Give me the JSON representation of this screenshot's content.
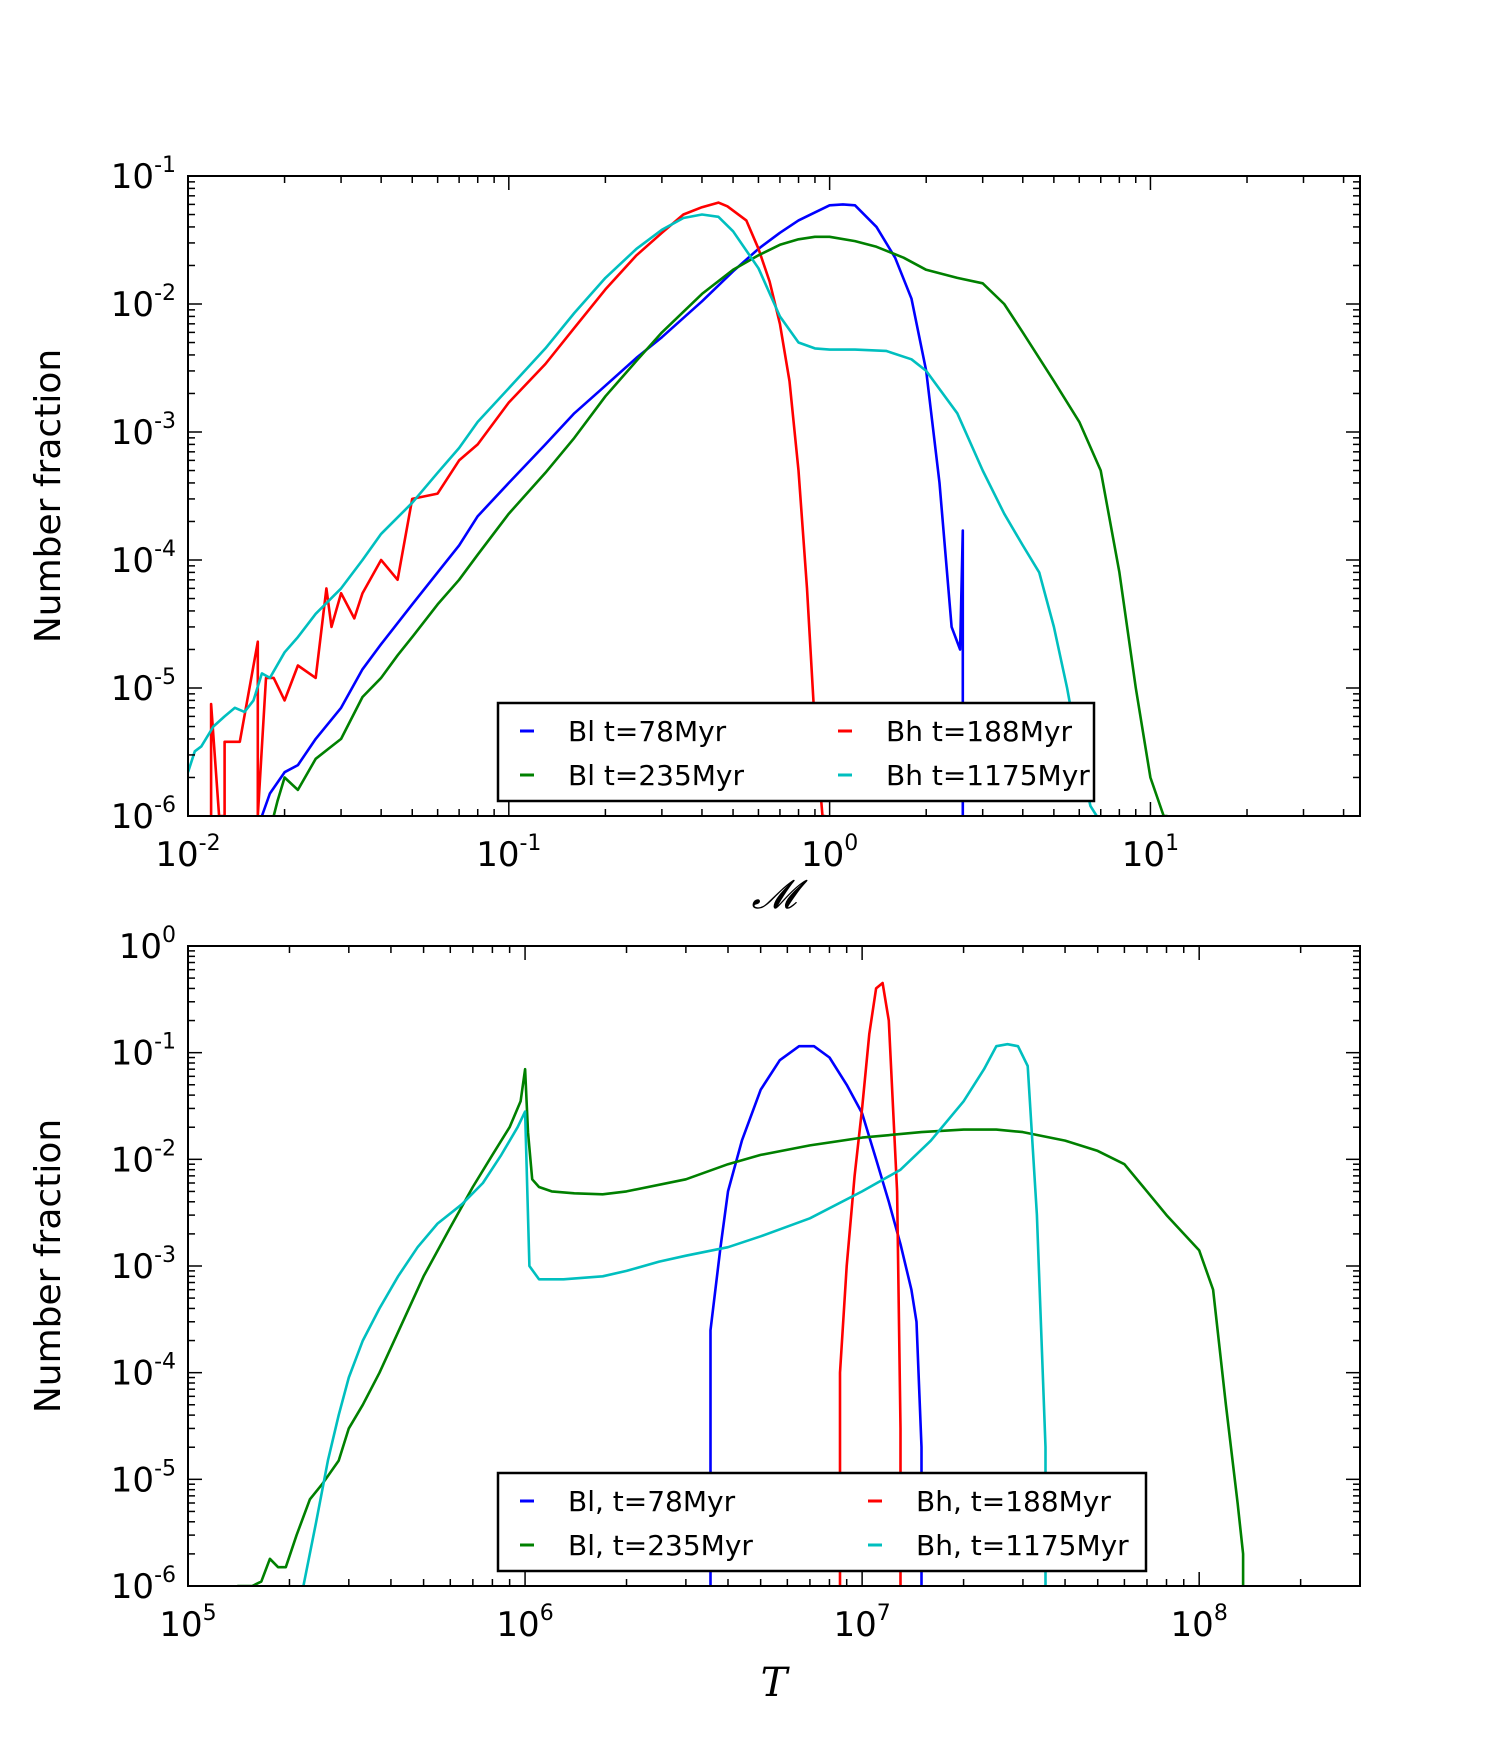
{
  "chart_data": [
    {
      "type": "line",
      "panel": "top",
      "xlabel": "𝓜",
      "ylabel": "Number fraction",
      "xscale": "log",
      "yscale": "log",
      "xlim": [
        0.01,
        45
      ],
      "ylim": [
        1e-06,
        0.1
      ],
      "xtick_labels": [
        {
          "base": "10",
          "exp": "-2"
        },
        {
          "base": "10",
          "exp": "-1"
        },
        {
          "base": "10",
          "exp": "0"
        },
        {
          "base": "10",
          "exp": "1"
        }
      ],
      "ytick_labels": [
        {
          "base": "10",
          "exp": "-6"
        },
        {
          "base": "10",
          "exp": "-5"
        },
        {
          "base": "10",
          "exp": "-4"
        },
        {
          "base": "10",
          "exp": "-3"
        },
        {
          "base": "10",
          "exp": "-2"
        },
        {
          "base": "10",
          "exp": "-1"
        }
      ],
      "grid": false,
      "legend_position": "lower-center",
      "series": [
        {
          "name": "Bl t=78Myr",
          "color": "#0000ff",
          "x": [
            0.017,
            0.018,
            0.02,
            0.022,
            0.025,
            0.03,
            0.035,
            0.04,
            0.05,
            0.06,
            0.07,
            0.08,
            0.1,
            0.13,
            0.16,
            0.2,
            0.25,
            0.3,
            0.4,
            0.5,
            0.6,
            0.7,
            0.8,
            0.9,
            1.0,
            1.1,
            1.2,
            1.4,
            1.6,
            1.8,
            2.0,
            2.2,
            2.4,
            2.55,
            2.6,
            2.6
          ],
          "y": [
            1e-06,
            1.5e-06,
            2.2e-06,
            2.5e-06,
            4e-06,
            7e-06,
            1.4e-05,
            2.2e-05,
            4.5e-05,
            8e-05,
            0.00013,
            0.00022,
            0.0004,
            0.0008,
            0.0014,
            0.0023,
            0.0038,
            0.0055,
            0.0105,
            0.018,
            0.027,
            0.036,
            0.045,
            0.052,
            0.059,
            0.06,
            0.059,
            0.04,
            0.023,
            0.011,
            0.003,
            0.0004,
            3e-05,
            2e-05,
            0.00017,
            1e-06
          ]
        },
        {
          "name": "Bh t=188Myr",
          "color": "#ff0000",
          "x": [
            0.0118,
            0.0118,
            0.0125,
            0.013,
            0.013,
            0.0145,
            0.0165,
            0.0165,
            0.0175,
            0.0185,
            0.02,
            0.022,
            0.025,
            0.027,
            0.028,
            0.03,
            0.033,
            0.035,
            0.04,
            0.045,
            0.05,
            0.06,
            0.07,
            0.08,
            0.1,
            0.13,
            0.16,
            0.2,
            0.25,
            0.3,
            0.35,
            0.4,
            0.45,
            0.48,
            0.55,
            0.6,
            0.65,
            0.7,
            0.75,
            0.8,
            0.85,
            0.9,
            0.95,
            0.97
          ],
          "y": [
            1e-06,
            7.5e-06,
            1e-06,
            1e-06,
            3.8e-06,
            3.8e-06,
            2.3e-05,
            1e-06,
            1.2e-05,
            1.2e-05,
            8e-06,
            1.5e-05,
            1.2e-05,
            6e-05,
            3e-05,
            5.5e-05,
            3.5e-05,
            5.5e-05,
            0.0001,
            7e-05,
            0.0003,
            0.00033,
            0.0006,
            0.0008,
            0.0017,
            0.0034,
            0.0065,
            0.013,
            0.024,
            0.036,
            0.05,
            0.057,
            0.062,
            0.058,
            0.045,
            0.027,
            0.015,
            0.007,
            0.0025,
            0.0005,
            6e-05,
            5e-06,
            1e-06,
            1e-06
          ]
        },
        {
          "name": "Bl t=235Myr",
          "color": "#008000",
          "x": [
            0.0185,
            0.019,
            0.02,
            0.022,
            0.025,
            0.028,
            0.03,
            0.035,
            0.04,
            0.045,
            0.05,
            0.06,
            0.07,
            0.08,
            0.1,
            0.13,
            0.16,
            0.2,
            0.25,
            0.3,
            0.4,
            0.5,
            0.6,
            0.7,
            0.8,
            0.9,
            1.0,
            1.2,
            1.4,
            1.7,
            2.0,
            2.5,
            3.0,
            3.5,
            4.0,
            5.0,
            6.0,
            7.0,
            8.0,
            9.0,
            10.0,
            11.0,
            11.3
          ],
          "y": [
            1e-06,
            1.3e-06,
            2e-06,
            1.6e-06,
            2.8e-06,
            3.5e-06,
            4e-06,
            8.5e-06,
            1.2e-05,
            1.8e-05,
            2.5e-05,
            4.5e-05,
            7e-05,
            0.00011,
            0.00023,
            0.00048,
            0.0009,
            0.0019,
            0.0036,
            0.006,
            0.012,
            0.0185,
            0.024,
            0.029,
            0.032,
            0.0335,
            0.0335,
            0.031,
            0.028,
            0.023,
            0.0185,
            0.016,
            0.0145,
            0.01,
            0.006,
            0.0025,
            0.0012,
            0.0005,
            8e-05,
            1e-05,
            2e-06,
            1e-06,
            1e-06
          ]
        },
        {
          "name": "Bh t=1175Myr",
          "color": "#00bfbf",
          "x": [
            0.01,
            0.0105,
            0.011,
            0.012,
            0.013,
            0.014,
            0.015,
            0.016,
            0.017,
            0.018,
            0.02,
            0.022,
            0.025,
            0.03,
            0.035,
            0.04,
            0.05,
            0.06,
            0.07,
            0.08,
            0.1,
            0.13,
            0.16,
            0.2,
            0.25,
            0.3,
            0.35,
            0.4,
            0.45,
            0.5,
            0.6,
            0.7,
            0.8,
            0.9,
            1.0,
            1.2,
            1.5,
            1.8,
            2.0,
            2.5,
            3.0,
            3.5,
            4.0,
            4.5,
            5.0,
            5.5,
            6.0,
            6.5,
            6.8
          ],
          "y": [
            2.2e-06,
            3.2e-06,
            3.5e-06,
            5e-06,
            6e-06,
            7e-06,
            6.5e-06,
            8e-06,
            1.3e-05,
            1.2e-05,
            1.9e-05,
            2.5e-05,
            3.8e-05,
            6e-05,
            0.0001,
            0.00016,
            0.00028,
            0.00048,
            0.00075,
            0.0012,
            0.0022,
            0.0045,
            0.0085,
            0.016,
            0.027,
            0.038,
            0.047,
            0.05,
            0.048,
            0.037,
            0.019,
            0.008,
            0.005,
            0.0045,
            0.0044,
            0.0044,
            0.0043,
            0.0037,
            0.003,
            0.0014,
            0.0005,
            0.00023,
            0.00013,
            8e-05,
            3e-05,
            1e-05,
            3e-06,
            1.2e-06,
            1e-06
          ]
        }
      ]
    },
    {
      "type": "line",
      "panel": "bottom",
      "xlabel": "T",
      "ylabel": "Number fraction",
      "xscale": "log",
      "yscale": "log",
      "xlim": [
        100000,
        300000000
      ],
      "ylim": [
        1e-06,
        1
      ],
      "xtick_labels": [
        {
          "base": "10",
          "exp": "5"
        },
        {
          "base": "10",
          "exp": "6"
        },
        {
          "base": "10",
          "exp": "7"
        },
        {
          "base": "10",
          "exp": "8"
        }
      ],
      "ytick_labels": [
        {
          "base": "10",
          "exp": "-6"
        },
        {
          "base": "10",
          "exp": "-5"
        },
        {
          "base": "10",
          "exp": "-4"
        },
        {
          "base": "10",
          "exp": "-3"
        },
        {
          "base": "10",
          "exp": "-2"
        },
        {
          "base": "10",
          "exp": "-1"
        },
        {
          "base": "10",
          "exp": "0"
        }
      ],
      "grid": false,
      "legend_position": "lower-center",
      "series": [
        {
          "name": "Bl, t=78Myr",
          "color": "#0000ff",
          "x": [
            3550000,
            3550000,
            3800000,
            4000000,
            4400000,
            5000000,
            5700000,
            6500000,
            7200000,
            8000000,
            9000000,
            10000000,
            11000000,
            12000000,
            13000000,
            14000000,
            14500000,
            15000000,
            15000000
          ],
          "y": [
            1e-06,
            0.00025,
            0.0015,
            0.005,
            0.015,
            0.045,
            0.085,
            0.115,
            0.115,
            0.09,
            0.05,
            0.027,
            0.01,
            0.004,
            0.0016,
            0.0006,
            0.0003,
            2e-05,
            1e-06
          ]
        },
        {
          "name": "Bh, t=188Myr",
          "color": "#ff0000",
          "x": [
            8600000,
            8600000,
            9000000,
            9500000,
            10000000,
            10500000,
            11000000,
            11500000,
            12000000,
            12700000,
            13000000,
            13000000
          ],
          "y": [
            1e-06,
            0.0001,
            0.001,
            0.007,
            0.03,
            0.15,
            0.4,
            0.45,
            0.2,
            0.005,
            3e-05,
            1e-06
          ]
        },
        {
          "name": "Bl, t=235Myr",
          "color": "#008000",
          "x": [
            140000,
            155000,
            165000,
            175000,
            185000,
            195000,
            210000,
            230000,
            250000,
            280000,
            300000,
            330000,
            370000,
            420000,
            500000,
            600000,
            700000,
            800000,
            900000,
            970000,
            1000000,
            1020000,
            1050000,
            1100000,
            1200000,
            1400000,
            1700000,
            2000000,
            3000000,
            4000000,
            5000000,
            7000000,
            10000000,
            15000000,
            20000000,
            25000000,
            30000000,
            40000000,
            50000000,
            60000000,
            70000000,
            80000000,
            100000000,
            110000000,
            120000000,
            130000000,
            135000000,
            135000000
          ],
          "y": [
            1e-06,
            1e-06,
            1.1e-06,
            1.8e-06,
            1.5e-06,
            1.5e-06,
            3e-06,
            6.5e-06,
            9e-06,
            1.5e-05,
            3e-05,
            5e-05,
            0.0001,
            0.00024,
            0.0008,
            0.0023,
            0.0055,
            0.011,
            0.02,
            0.035,
            0.07,
            0.018,
            0.0065,
            0.0055,
            0.005,
            0.0048,
            0.0047,
            0.005,
            0.0065,
            0.009,
            0.011,
            0.0135,
            0.016,
            0.018,
            0.019,
            0.019,
            0.018,
            0.015,
            0.012,
            0.009,
            0.005,
            0.003,
            0.0014,
            0.0006,
            5e-05,
            6e-06,
            2e-06,
            1e-06
          ]
        },
        {
          "name": "Bh, t=1175Myr",
          "color": "#00bfbf",
          "x": [
            220000,
            240000,
            260000,
            280000,
            300000,
            330000,
            370000,
            420000,
            480000,
            550000,
            650000,
            750000,
            850000,
            950000,
            1000000,
            1030000,
            1100000,
            1300000,
            1700000,
            2000000,
            2500000,
            3000000,
            4000000,
            5000000,
            7000000,
            10000000,
            13000000,
            16000000,
            20000000,
            23000000,
            25000000,
            27000000,
            29000000,
            31000000,
            33000000,
            35000000,
            35000000
          ],
          "y": [
            1e-06,
            4e-06,
            1.5e-05,
            4e-05,
            9e-05,
            0.0002,
            0.0004,
            0.0008,
            0.0015,
            0.0025,
            0.0038,
            0.006,
            0.011,
            0.02,
            0.028,
            0.001,
            0.00075,
            0.00075,
            0.0008,
            0.0009,
            0.0011,
            0.00125,
            0.0015,
            0.0019,
            0.0028,
            0.005,
            0.008,
            0.015,
            0.035,
            0.07,
            0.115,
            0.12,
            0.115,
            0.075,
            0.003,
            2e-05,
            1e-06
          ]
        }
      ]
    }
  ]
}
